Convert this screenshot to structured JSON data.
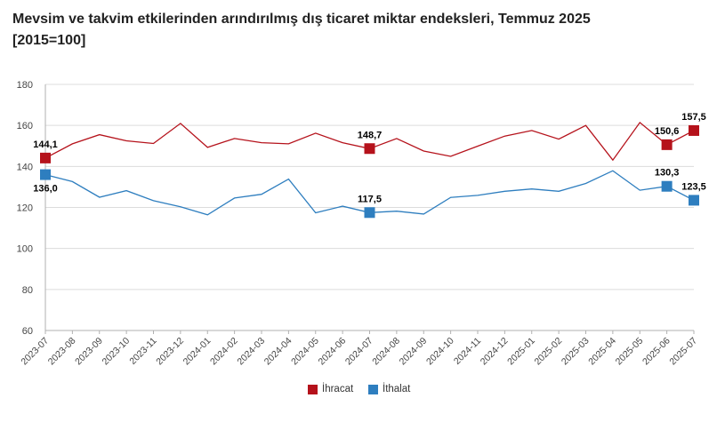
{
  "title": {
    "line1": "Mevsim ve takvim etkilerinden arındırılmış dış ticaret miktar endeksleri, Temmuz 2025",
    "line2": "[2015=100]"
  },
  "colors": {
    "ihracat": "#B5121B",
    "ithalat": "#2E7EBF",
    "grid": "#dcdcdc",
    "axis": "#b0b0b0"
  },
  "chart_data": {
    "type": "line",
    "categories": [
      "2023-07",
      "2023-08",
      "2023-09",
      "2023-10",
      "2023-11",
      "2023-12",
      "2024-01",
      "2024-02",
      "2024-03",
      "2024-04",
      "2024-05",
      "2024-06",
      "2024-07",
      "2024-08",
      "2024-09",
      "2024-10",
      "2024-11",
      "2024-12",
      "2025-01",
      "2025-02",
      "2025-03",
      "2025-04",
      "2025-05",
      "2025-06",
      "2025-07"
    ],
    "ylim": [
      60,
      180
    ],
    "yticks": [
      60,
      80,
      100,
      120,
      140,
      160,
      180
    ],
    "grid": "horizontal",
    "legend_position": "bottom",
    "series": [
      {
        "name": "İhracat",
        "color": "#B5121B",
        "values": [
          144.1,
          151.0,
          155.5,
          152.5,
          151.2,
          161.0,
          149.3,
          153.6,
          151.6,
          151.0,
          156.2,
          151.6,
          148.7,
          153.6,
          147.5,
          144.9,
          149.9,
          154.8,
          157.5,
          153.3,
          160.0,
          143.1,
          161.4,
          150.6,
          157.5
        ]
      },
      {
        "name": "İthalat",
        "color": "#2E7EBF",
        "values": [
          136.0,
          132.6,
          125.0,
          128.2,
          123.3,
          120.3,
          116.4,
          124.6,
          126.4,
          133.8,
          117.4,
          120.6,
          117.5,
          118.2,
          116.8,
          124.9,
          125.9,
          127.9,
          129.0,
          127.9,
          131.7,
          137.9,
          128.4,
          130.3,
          123.5
        ]
      }
    ],
    "data_labels": [
      {
        "series": 0,
        "index": 0,
        "text": "144,1",
        "pos": "above"
      },
      {
        "series": 1,
        "index": 0,
        "text": "136,0",
        "pos": "below"
      },
      {
        "series": 0,
        "index": 12,
        "text": "148,7",
        "pos": "above"
      },
      {
        "series": 1,
        "index": 12,
        "text": "117,5",
        "pos": "above"
      },
      {
        "series": 0,
        "index": 23,
        "text": "150,6",
        "pos": "above"
      },
      {
        "series": 1,
        "index": 23,
        "text": "130,3",
        "pos": "above"
      },
      {
        "series": 0,
        "index": 24,
        "text": "157,5",
        "pos": "above"
      },
      {
        "series": 1,
        "index": 24,
        "text": "123,5",
        "pos": "above"
      }
    ]
  },
  "legend": {
    "items": [
      "İhracat",
      "İthalat"
    ]
  }
}
